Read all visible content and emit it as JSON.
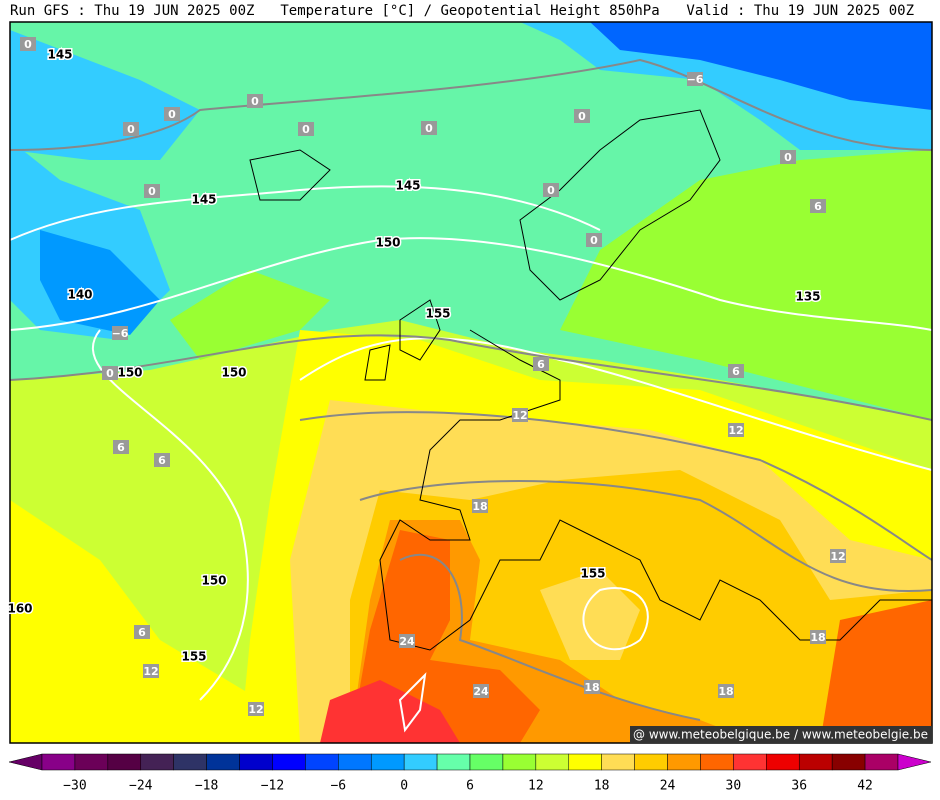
{
  "header": {
    "left": "Run GFS : Thu 19 JUN 2025 00Z",
    "center": "Temperature [°C] / Geopotential Height 850hPa",
    "right": "Valid : Thu 19 JUN 2025 00Z"
  },
  "map": {
    "height_labels": [
      "145",
      "145",
      "145",
      "150",
      "140",
      "155",
      "150",
      "150",
      "135",
      "150",
      "160",
      "155",
      "155"
    ],
    "temperature_labels": [
      "0",
      "0",
      "0",
      "0",
      "0",
      "0",
      "0",
      "0",
      "0",
      "0",
      "0",
      "−6",
      "−6",
      "6",
      "6",
      "6",
      "6",
      "6",
      "6",
      "12",
      "12",
      "12",
      "12",
      "12",
      "18",
      "18",
      "18",
      "18",
      "24",
      "24",
      "0"
    ],
    "credit": "@ www.meteobelgique.be / www.meteobelgie.be"
  },
  "colorbar": {
    "colors": [
      "#660066",
      "#880088",
      "#6b0058",
      "#550044",
      "#442255",
      "#2e3366",
      "#003399",
      "#0000cc",
      "#0000ff",
      "#0044ff",
      "#0077ff",
      "#0099ff",
      "#33ccff",
      "#66ffaa",
      "#66ff66",
      "#99ff33",
      "#ccff33",
      "#ffff00",
      "#ffdd55",
      "#ffcc00",
      "#ff9900",
      "#ff6600",
      "#ff3333",
      "#ee0000",
      "#bb0000",
      "#880000",
      "#aa0066",
      "#cc00cc"
    ],
    "labels": [
      "−30",
      "−24",
      "−18",
      "−12",
      "−6",
      "0",
      "6",
      "12",
      "18",
      "24",
      "30",
      "36",
      "42"
    ]
  }
}
